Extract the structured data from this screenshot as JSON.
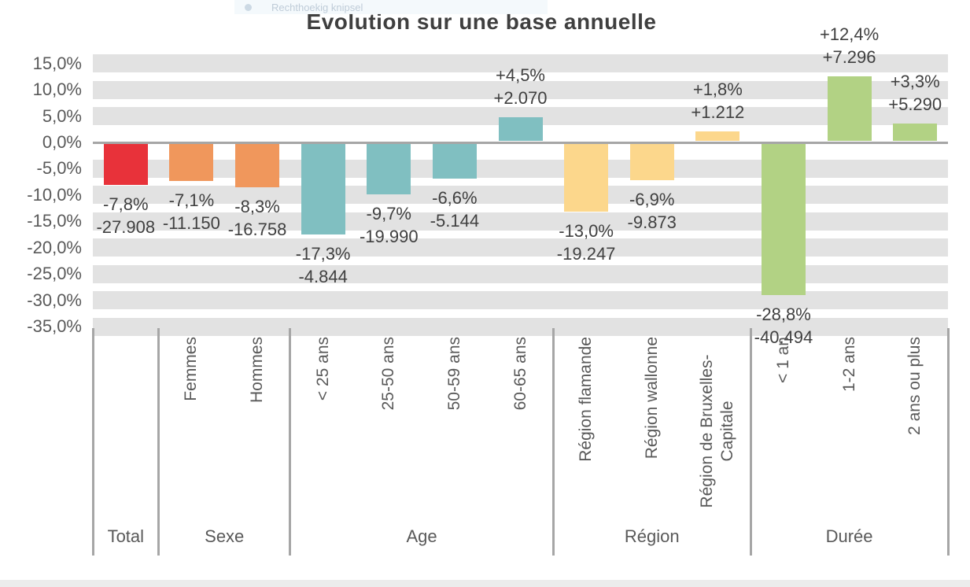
{
  "snip_overlay": {
    "label": "Rechthoekig knipsel"
  },
  "title": "Evolution sur une base annuelle",
  "palette": {
    "bar_total": "#e8323a",
    "bar_sexe": "#f0975c",
    "bar_age": "#80bfc1",
    "bar_region": "#fcd78c",
    "bar_duree": "#b2d284",
    "grid_band": "#e2e2e2",
    "axis_line": "#a6a6a6",
    "tick_text": "#595959",
    "value_text": "#404040"
  },
  "chart_data": {
    "type": "bar",
    "title": "Evolution sur une base annuelle",
    "xlabel": "",
    "ylabel": "",
    "ylim": [
      -35,
      15
    ],
    "grid": "horizontal-bands",
    "legend": "none",
    "value_label_format": "percent (comma decimal) above/below bar, absolute count (dot thousands) second line",
    "yticks": [
      {
        "value": 15,
        "label": "15,0%"
      },
      {
        "value": 10,
        "label": "10,0%"
      },
      {
        "value": 5,
        "label": "5,0%"
      },
      {
        "value": 0,
        "label": "0,0%"
      },
      {
        "value": -5,
        "label": "-5,0%"
      },
      {
        "value": -10,
        "label": "-10,0%"
      },
      {
        "value": -15,
        "label": "-15,0%"
      },
      {
        "value": -20,
        "label": "-20,0%"
      },
      {
        "value": -25,
        "label": "-25,0%"
      },
      {
        "value": -30,
        "label": "-30,0%"
      },
      {
        "value": -35,
        "label": "-35,0%"
      }
    ],
    "groups": [
      {
        "label": "Total",
        "color": "#e8323a",
        "bars": [
          {
            "category": "",
            "slug": "total",
            "pct": -7.8,
            "pct_label": "-7,8%",
            "abs": -27908,
            "abs_label": "-27.908"
          }
        ]
      },
      {
        "label": "Sexe",
        "color": "#f0975c",
        "bars": [
          {
            "category": "Femmes",
            "slug": "femmes",
            "pct": -7.1,
            "pct_label": "-7,1%",
            "abs": -11150,
            "abs_label": "-11.150"
          },
          {
            "category": "Hommes",
            "slug": "hommes",
            "pct": -8.3,
            "pct_label": "-8,3%",
            "abs": -16758,
            "abs_label": "-16.758"
          }
        ]
      },
      {
        "label": "Age",
        "color": "#80bfc1",
        "bars": [
          {
            "category": "< 25 ans",
            "slug": "moins-25-ans",
            "pct": -17.3,
            "pct_label": "-17,3%",
            "abs": -4844,
            "abs_label": "-4.844"
          },
          {
            "category": "25-50 ans",
            "slug": "25-50-ans",
            "pct": -9.7,
            "pct_label": "-9,7%",
            "abs": -19990,
            "abs_label": "-19.990"
          },
          {
            "category": "50-59 ans",
            "slug": "50-59-ans",
            "pct": -6.6,
            "pct_label": "-6,6%",
            "abs": -5144,
            "abs_label": "-5.144"
          },
          {
            "category": "60-65 ans",
            "slug": "60-65-ans",
            "pct": 4.5,
            "pct_label": "+4,5%",
            "abs": 2070,
            "abs_label": "+2.070"
          }
        ]
      },
      {
        "label": "Région",
        "color": "#fcd78c",
        "bars": [
          {
            "category": "Région flamande",
            "slug": "region-flamande",
            "pct": -13.0,
            "pct_label": "-13,0%",
            "abs": -19247,
            "abs_label": "-19.247"
          },
          {
            "category": "Région wallonne",
            "slug": "region-wallonne",
            "pct": -6.9,
            "pct_label": "-6,9%",
            "abs": -9873,
            "abs_label": "-9.873"
          },
          {
            "category": "Région de Bruxelles-Capitale",
            "slug": "region-bruxelles-capitale",
            "pct": 1.8,
            "pct_label": "+1,8%",
            "abs": 1212,
            "abs_label": "+1.212",
            "wrap": true
          }
        ]
      },
      {
        "label": "Durée",
        "color": "#b2d284",
        "bars": [
          {
            "category": "< 1 an",
            "slug": "moins-1-an",
            "pct": -28.8,
            "pct_label": "-28,8%",
            "abs": -40494,
            "abs_label": "-40.494"
          },
          {
            "category": "1-2 ans",
            "slug": "1-2-ans",
            "pct": 12.4,
            "pct_label": "+12,4%",
            "abs": 7296,
            "abs_label": "+7.296"
          },
          {
            "category": "2 ans ou plus",
            "slug": "2-ans-ou-plus",
            "pct": 3.3,
            "pct_label": "+3,3%",
            "abs": 5290,
            "abs_label": "+5.290"
          }
        ]
      }
    ]
  }
}
